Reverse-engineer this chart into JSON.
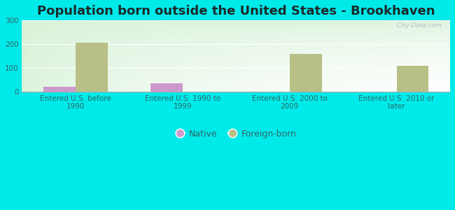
{
  "title": "Population born outside the United States - Brookhaven",
  "categories": [
    "Entered U.S. before\n1990",
    "Entered U.S. 1990 to\n1999",
    "Entered U.S. 2000 to\n2009",
    "Entered U.S. 2010 or\nlater"
  ],
  "native_values": [
    20,
    35,
    0,
    0
  ],
  "foreign_values": [
    205,
    0,
    158,
    108
  ],
  "native_color": "#cc99cc",
  "foreign_color": "#b8bf87",
  "background_color": "#00eaea",
  "ylim": [
    0,
    300
  ],
  "yticks": [
    0,
    100,
    200,
    300
  ],
  "bar_width": 0.3,
  "legend_native": "Native",
  "legend_foreign": "Foreign-born",
  "watermark": "  City-Data.com",
  "title_fontsize": 13,
  "tick_fontsize": 7.5,
  "legend_fontsize": 9,
  "title_color": "#1a2a2a",
  "tick_color": "#336666"
}
